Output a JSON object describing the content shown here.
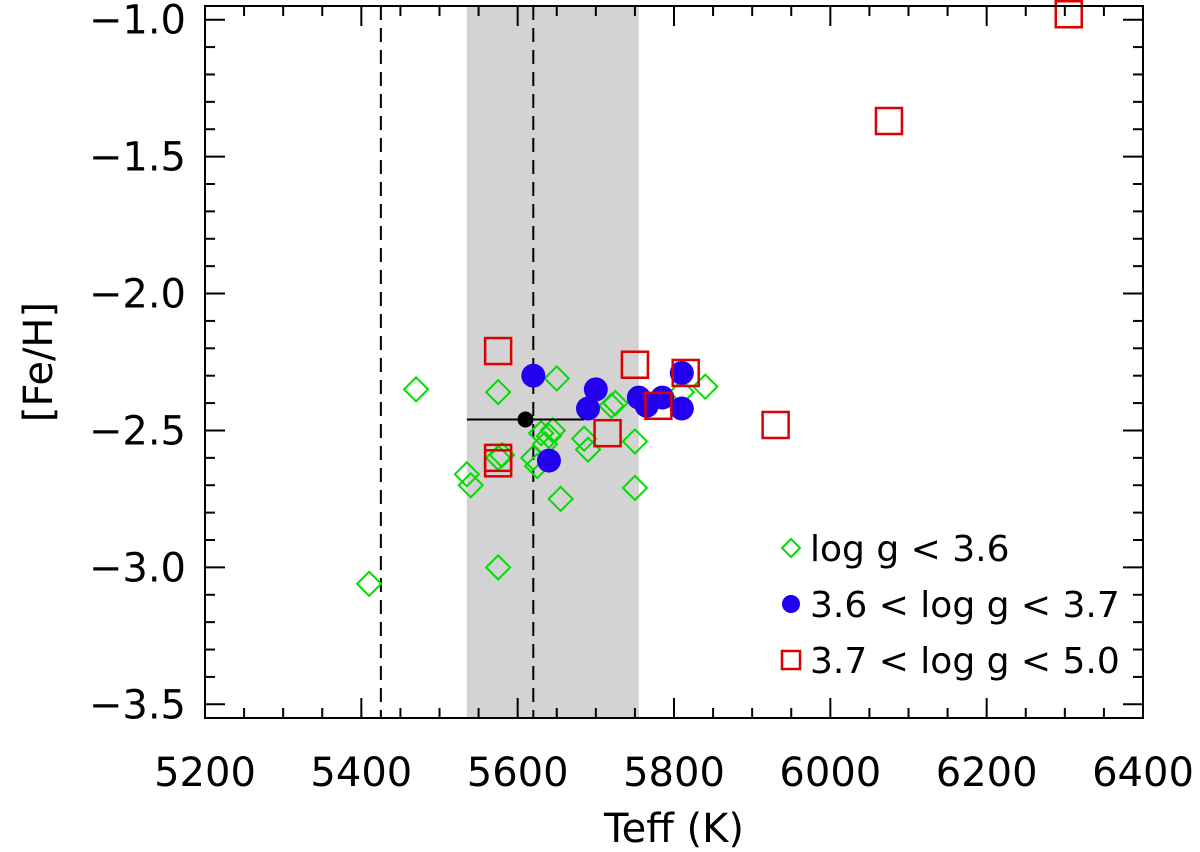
{
  "chart_data": {
    "type": "scatter",
    "title": "",
    "xlabel": "Teff (K)",
    "ylabel": "[Fe/H]",
    "xlim": [
      5200,
      6400
    ],
    "ylim": [
      -3.55,
      -0.95
    ],
    "xticks": [
      5200,
      5400,
      5600,
      5800,
      6000,
      6200,
      6400
    ],
    "xtick_labels": [
      "5200",
      "5400",
      "5600",
      "5800",
      "6000",
      "6200",
      "6400"
    ],
    "yticks": [
      -3.5,
      -3.0,
      -2.5,
      -2.0,
      -1.5,
      -1.0
    ],
    "ytick_labels": [
      "−3.5",
      "−3.0",
      "−2.5",
      "−2.0",
      "−1.5",
      "−1.0"
    ],
    "shaded_band": {
      "x0": 5535,
      "x1": 5755,
      "color": "#d3d3d3"
    },
    "vlines": [
      5425,
      5620
    ],
    "reference_point": {
      "x": 5610,
      "y": -2.46,
      "xerr_low": 5535,
      "xerr_high": 5685
    },
    "legend_position": "bottom-right",
    "series": [
      {
        "name": "log g < 3.6",
        "marker": "diamond",
        "color": "#00dd00",
        "points": [
          [
            5410,
            -3.06
          ],
          [
            5470,
            -2.35
          ],
          [
            5535,
            -2.66
          ],
          [
            5540,
            -2.7
          ],
          [
            5575,
            -2.36
          ],
          [
            5575,
            -2.6
          ],
          [
            5575,
            -3.0
          ],
          [
            5580,
            -2.59
          ],
          [
            5620,
            -2.6
          ],
          [
            5625,
            -2.63
          ],
          [
            5630,
            -2.51
          ],
          [
            5635,
            -2.55
          ],
          [
            5640,
            -2.52
          ],
          [
            5645,
            -2.5
          ],
          [
            5650,
            -2.31
          ],
          [
            5655,
            -2.75
          ],
          [
            5685,
            -2.53
          ],
          [
            5690,
            -2.57
          ],
          [
            5720,
            -2.41
          ],
          [
            5725,
            -2.4
          ],
          [
            5750,
            -2.54
          ],
          [
            5750,
            -2.71
          ],
          [
            5810,
            -2.36
          ],
          [
            5840,
            -2.34
          ]
        ]
      },
      {
        "name": "3.6 < log g < 3.7",
        "marker": "circle",
        "color": "#2200ee",
        "points": [
          [
            5620,
            -2.3
          ],
          [
            5640,
            -2.61
          ],
          [
            5690,
            -2.42
          ],
          [
            5700,
            -2.35
          ],
          [
            5755,
            -2.38
          ],
          [
            5765,
            -2.41
          ],
          [
            5785,
            -2.38
          ],
          [
            5810,
            -2.29
          ],
          [
            5810,
            -2.42
          ]
        ]
      },
      {
        "name": "3.7 < log g < 5.0",
        "marker": "square",
        "color": "#dd0000",
        "points": [
          [
            5575,
            -2.21
          ],
          [
            5575,
            -2.6
          ],
          [
            5575,
            -2.62
          ],
          [
            5715,
            -2.51
          ],
          [
            5750,
            -2.26
          ],
          [
            5780,
            -2.41
          ],
          [
            5815,
            -2.29
          ],
          [
            5930,
            -2.48
          ],
          [
            6075,
            -1.37
          ],
          [
            6305,
            -0.98
          ]
        ]
      }
    ]
  }
}
